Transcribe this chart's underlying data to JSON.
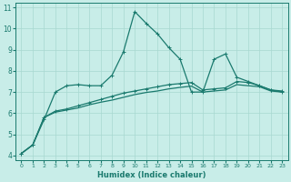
{
  "xlabel": "Humidex (Indice chaleur)",
  "bg_color": "#c8ede8",
  "line_color": "#1a7a6e",
  "grid_color": "#a8d8d0",
  "xlim": [
    -0.5,
    23.5
  ],
  "ylim": [
    3.8,
    11.2
  ],
  "yticks": [
    4,
    5,
    6,
    7,
    8,
    9,
    10,
    11
  ],
  "xticks": [
    0,
    1,
    2,
    3,
    4,
    5,
    6,
    7,
    8,
    9,
    10,
    11,
    12,
    13,
    14,
    15,
    16,
    17,
    18,
    19,
    20,
    21,
    22,
    23
  ],
  "line1_x": [
    0,
    1,
    2,
    3,
    4,
    5,
    6,
    7,
    8,
    9,
    10,
    11,
    12,
    13,
    14,
    15,
    16,
    17,
    18,
    19,
    20,
    21,
    22,
    23
  ],
  "line1_y": [
    4.1,
    4.5,
    5.7,
    7.0,
    7.3,
    7.35,
    7.3,
    7.3,
    7.8,
    8.9,
    10.8,
    10.25,
    9.75,
    9.1,
    8.55,
    7.0,
    7.0,
    8.55,
    8.8,
    7.7,
    7.5,
    7.3,
    7.1,
    7.0
  ],
  "line2_x": [
    0,
    1,
    2,
    3,
    4,
    5,
    6,
    7,
    8,
    9,
    10,
    11,
    12,
    13,
    14,
    15,
    16,
    17,
    18,
    19,
    20,
    21,
    22,
    23
  ],
  "line2_y": [
    4.1,
    4.5,
    5.8,
    6.1,
    6.2,
    6.35,
    6.5,
    6.65,
    6.8,
    6.95,
    7.05,
    7.15,
    7.25,
    7.35,
    7.4,
    7.45,
    7.1,
    7.15,
    7.2,
    7.5,
    7.45,
    7.3,
    7.1,
    7.05
  ],
  "line3_x": [
    0,
    1,
    2,
    3,
    4,
    5,
    6,
    7,
    8,
    9,
    10,
    11,
    12,
    13,
    14,
    15,
    16,
    17,
    18,
    19,
    20,
    21,
    22,
    23
  ],
  "line3_y": [
    4.1,
    4.5,
    5.8,
    6.05,
    6.15,
    6.25,
    6.4,
    6.52,
    6.62,
    6.75,
    6.88,
    6.98,
    7.05,
    7.15,
    7.22,
    7.28,
    7.0,
    7.05,
    7.1,
    7.35,
    7.3,
    7.25,
    7.05,
    7.0
  ]
}
